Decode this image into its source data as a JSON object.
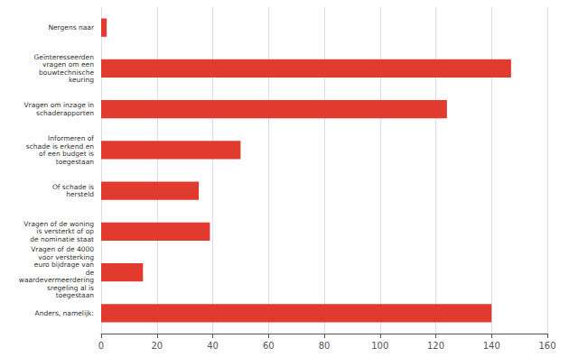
{
  "chart_data": {
    "type": "bar",
    "orientation": "horizontal",
    "categories": [
      "Anders, namelijk:",
      "Vragen of de 4000\nvoor versterking\neuro bijdrage van\nde\nwaardevermeerdering\nsregeling al is\ntoegestaan",
      "Vragen of de woning\nis versterkt of op\nde nominatie staat",
      "Of schade is\nhersteld",
      "Informeren of\nschade is erkend en\nof een budget is\ntoegestaan",
      "Vragen om inzage in\nschaderapporten",
      "Geïnteresseerden\nvragen om een\nbouwtechnische\nkeuring",
      "Nergens naar"
    ],
    "values": [
      140,
      15,
      39,
      35,
      50,
      124,
      147,
      2
    ],
    "color": "#E03B2E",
    "xlim": [
      0,
      160
    ],
    "xticks": [
      0,
      20,
      40,
      60,
      80,
      100,
      120,
      140,
      160
    ],
    "grid": true
  }
}
